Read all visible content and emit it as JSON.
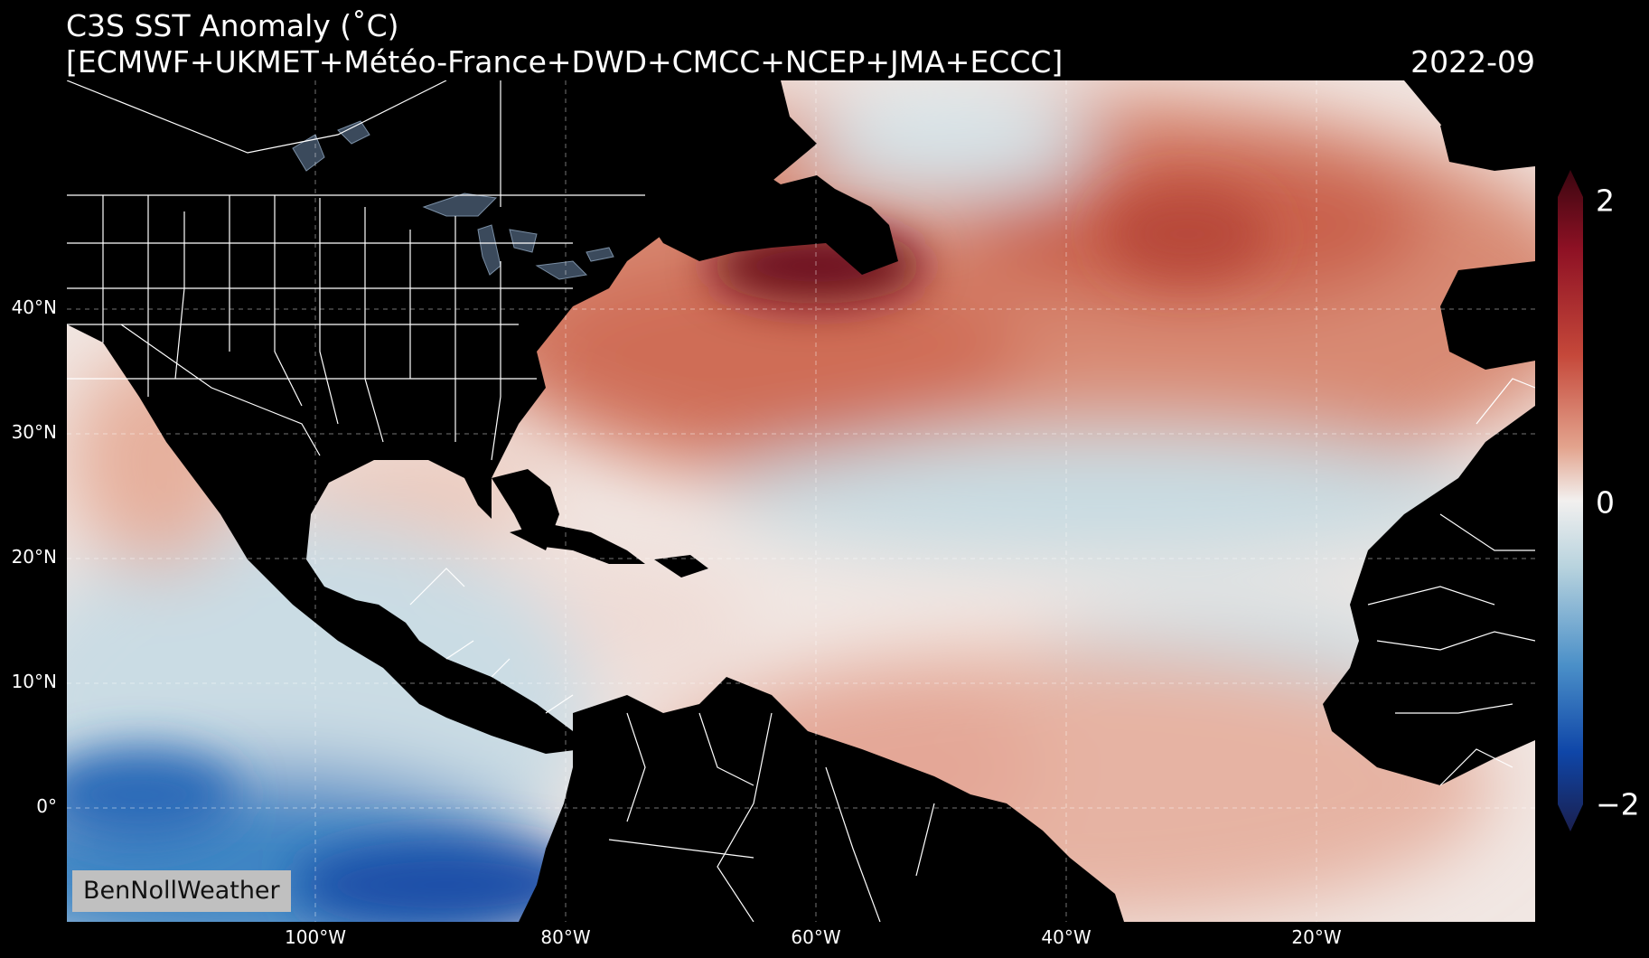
{
  "header": {
    "title": "C3S SST Anomaly (˚C)",
    "subtitle": "[ECMWF+UKMET+Météo-France+DWD+CMCC+NCEP+JMA+ECCC]",
    "date": "2022-09"
  },
  "map": {
    "region": "Tropical & North Atlantic, eastern Pacific",
    "lat_labels": [
      "40°N",
      "30°N",
      "20°N",
      "10°N",
      "0°"
    ],
    "lon_labels": [
      "100°W",
      "80°W",
      "60°W",
      "40°W",
      "20°W"
    ],
    "land_color": "#000000",
    "border_color": "#ffffff",
    "lake_color": "#3b4a5c"
  },
  "colorbar": {
    "max_label": "2",
    "mid_label": "0",
    "min_label": "−2",
    "colors": [
      "#1a1f4e",
      "#0f46a8",
      "#4a8fc8",
      "#b8d3de",
      "#f2f0ef",
      "#e3a48e",
      "#c5483a",
      "#8e1124",
      "#3a0610"
    ]
  },
  "credit": "BenNollWeather"
}
